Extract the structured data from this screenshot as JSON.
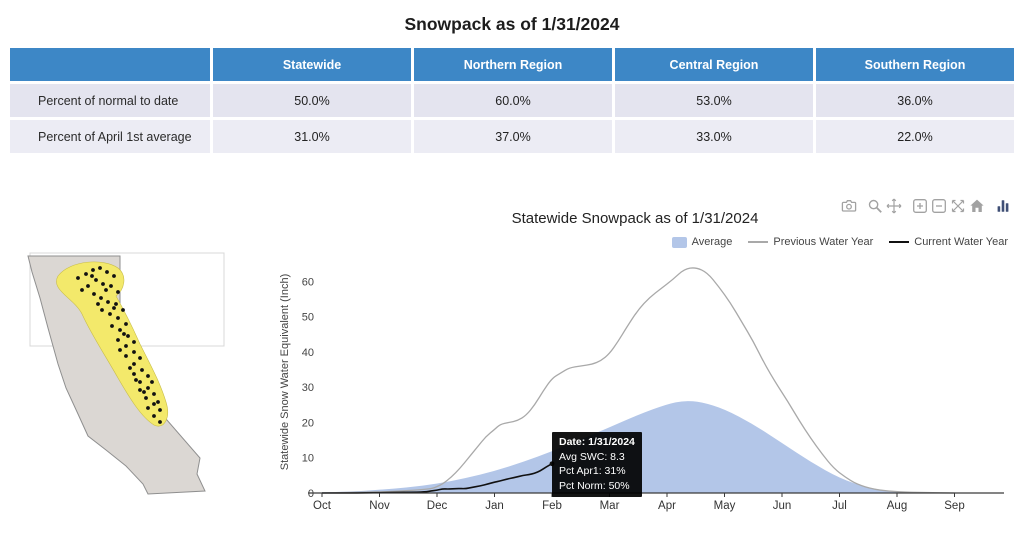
{
  "page": {
    "title": "Snowpack as of 1/31/2024"
  },
  "table": {
    "header_bg": "#3d87c6",
    "row1_bg": "#e4e4ef",
    "row2_bg": "#ececf4",
    "columns": [
      "",
      "Statewide",
      "Northern Region",
      "Central Region",
      "Southern Region"
    ],
    "rows": [
      {
        "label": "Percent of normal to date",
        "values": [
          "50.0%",
          "60.0%",
          "53.0%",
          "36.0%"
        ]
      },
      {
        "label": "Percent of April 1st average",
        "values": [
          "31.0%",
          "37.0%",
          "33.0%",
          "22.0%"
        ]
      }
    ]
  },
  "map": {
    "state_fill": "#dbd7d3",
    "state_stroke": "#8f8f8f",
    "region_color": "#f3e96b",
    "station_color": "#111111",
    "stations": [
      [
        70,
        32
      ],
      [
        78,
        28
      ],
      [
        85,
        24
      ],
      [
        92,
        22
      ],
      [
        99,
        26
      ],
      [
        106,
        30
      ],
      [
        88,
        34
      ],
      [
        80,
        40
      ],
      [
        95,
        38
      ],
      [
        103,
        40
      ],
      [
        110,
        46
      ],
      [
        86,
        48
      ],
      [
        93,
        52
      ],
      [
        100,
        56
      ],
      [
        108,
        58
      ],
      [
        115,
        64
      ],
      [
        94,
        64
      ],
      [
        102,
        68
      ],
      [
        110,
        72
      ],
      [
        118,
        78
      ],
      [
        104,
        80
      ],
      [
        112,
        84
      ],
      [
        120,
        90
      ],
      [
        126,
        96
      ],
      [
        110,
        94
      ],
      [
        118,
        100
      ],
      [
        126,
        106
      ],
      [
        132,
        112
      ],
      [
        118,
        110
      ],
      [
        126,
        118
      ],
      [
        134,
        124
      ],
      [
        140,
        130
      ],
      [
        126,
        128
      ],
      [
        132,
        136
      ],
      [
        140,
        142
      ],
      [
        146,
        148
      ],
      [
        132,
        144
      ],
      [
        138,
        152
      ],
      [
        146,
        158
      ],
      [
        152,
        164
      ],
      [
        140,
        162
      ],
      [
        146,
        170
      ],
      [
        152,
        176
      ],
      [
        98,
        44
      ],
      [
        90,
        58
      ],
      [
        122,
        122
      ],
      [
        128,
        134
      ],
      [
        144,
        136
      ],
      [
        150,
        156
      ],
      [
        84,
        30
      ],
      [
        74,
        44
      ],
      [
        112,
        104
      ],
      [
        136,
        146
      ],
      [
        116,
        88
      ],
      [
        106,
        62
      ]
    ]
  },
  "chart_toolbar": {
    "icons": [
      "camera-icon",
      "zoom-icon",
      "pan-icon",
      "zoom-in-icon",
      "zoom-out-icon",
      "autoscale-icon",
      "reset-axes-home-icon",
      "plotly-logo-icon"
    ]
  },
  "chart_data": {
    "type": "area+line",
    "title": "Statewide Snowpack as of 1/31/2024",
    "ylabel": "Statewide Snow Water Equivalent (Inch)",
    "x_ticks": [
      "Oct",
      "Nov",
      "Dec",
      "Jan",
      "Feb",
      "Mar",
      "Apr",
      "May",
      "Jun",
      "Jul",
      "Aug",
      "Sep"
    ],
    "y_ticks": [
      0,
      10,
      20,
      30,
      40,
      50,
      60
    ],
    "xlim": [
      0,
      12
    ],
    "ylim": [
      0,
      66
    ],
    "grid": false,
    "legend_position": "top-right",
    "series": [
      {
        "name": "Average",
        "type": "area",
        "color": "#b3c6e8",
        "x": [
          0,
          0.5,
          1,
          1.5,
          2,
          2.5,
          3,
          3.5,
          4,
          4.5,
          5,
          5.5,
          6,
          6.3,
          6.6,
          7,
          7.5,
          8,
          8.5,
          9,
          9.5,
          10,
          10.5,
          11
        ],
        "y": [
          0.2,
          0.4,
          0.9,
          1.6,
          2.6,
          4.2,
          6.2,
          8.8,
          11.8,
          15.2,
          18.6,
          22.2,
          25.2,
          26.2,
          25.8,
          23.8,
          19.5,
          14.2,
          8.8,
          4.2,
          1.4,
          0.3,
          0.1,
          0
        ]
      },
      {
        "name": "Previous Water Year",
        "type": "line",
        "color": "#a9a9a9",
        "x": [
          0,
          0.7,
          1.2,
          1.6,
          1.9,
          2,
          2.1,
          2.25,
          2.4,
          2.55,
          2.7,
          2.85,
          3,
          3.1,
          3.25,
          3.4,
          3.55,
          3.7,
          3.85,
          4,
          4.15,
          4.3,
          4.5,
          4.7,
          4.85,
          5,
          5.15,
          5.3,
          5.5,
          5.7,
          5.9,
          6.1,
          6.3,
          6.5,
          6.7,
          6.9,
          7.1,
          7.3,
          7.5,
          7.7,
          7.9,
          8.1,
          8.3,
          8.5,
          8.7,
          8.9,
          9.1,
          9.3,
          9.6,
          10,
          10.5,
          11
        ],
        "y": [
          0,
          0.2,
          0.4,
          0.8,
          1.2,
          1.8,
          2.6,
          4.5,
          7,
          10,
          13,
          16,
          18,
          19.5,
          20,
          20.5,
          22,
          25,
          29,
          32.5,
          34,
          35.5,
          36,
          36.5,
          37.5,
          39.5,
          43,
          47,
          52,
          55.5,
          58,
          60.5,
          63.5,
          64,
          62.5,
          58.5,
          54,
          48.5,
          43,
          36.5,
          31,
          26,
          20.5,
          15.5,
          11,
          7,
          4.5,
          2.5,
          1,
          0.3,
          0.1,
          0
        ]
      },
      {
        "name": "Current Water Year",
        "type": "line",
        "color": "#111111",
        "x": [
          0,
          0.5,
          1,
          1.5,
          1.8,
          1.9,
          2,
          2.1,
          2.2,
          2.35,
          2.5,
          2.6,
          2.75,
          2.9,
          3,
          3.1,
          3.2,
          3.35,
          3.5,
          3.6,
          3.7,
          3.8,
          3.9,
          4
        ],
        "y": [
          0,
          0,
          0.1,
          0.2,
          0.3,
          0.6,
          0.8,
          1.2,
          1.1,
          1.3,
          1.2,
          1.6,
          2,
          2.6,
          3.1,
          3.4,
          3.9,
          4.4,
          5,
          5.2,
          5.6,
          6.3,
          7.4,
          8.3
        ]
      }
    ],
    "tooltip": {
      "lines": [
        "Date: 1/31/2024",
        "Avg SWC: 8.3",
        "Pct Apr1: 31%",
        "Pct Norm: 50%"
      ]
    }
  }
}
